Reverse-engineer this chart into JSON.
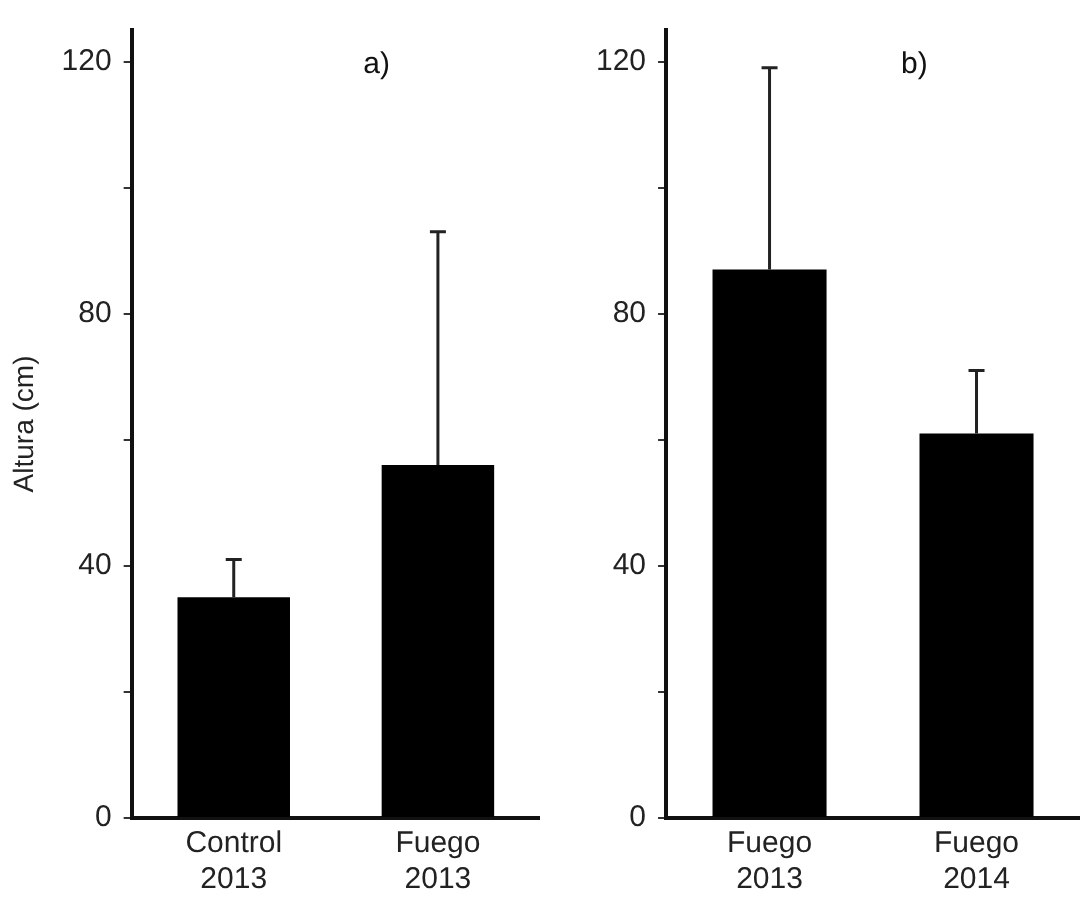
{
  "chart_data": [
    {
      "type": "bar",
      "ylabel": "Altura (cm)",
      "annotations": [
        "a)"
      ],
      "categories": [
        "Control 2013",
        "Fuego 2013"
      ],
      "values": [
        35,
        56
      ],
      "errors": [
        [
          35,
          41
        ],
        [
          56,
          93
        ]
      ],
      "color": "#000000",
      "ylim": [
        0,
        125
      ],
      "yticks": [
        0,
        {
          "value": 20,
          "label": null
        },
        40,
        {
          "value": 60,
          "label": null
        },
        80,
        {
          "value": 100,
          "label": null
        },
        120
      ],
      "grid": false,
      "legend": false
    },
    {
      "type": "bar",
      "annotations": [
        "b)"
      ],
      "categories": [
        "Fuego 2013",
        "Fuego 2014"
      ],
      "values": [
        87,
        61
      ],
      "errors": [
        [
          87,
          119
        ],
        [
          61,
          71
        ]
      ],
      "color": "#000000",
      "ylim": [
        0,
        125
      ],
      "yticks": [
        0,
        {
          "value": 20,
          "label": null
        },
        40,
        {
          "value": 60,
          "label": null
        },
        80,
        {
          "value": 100,
          "label": null
        },
        120
      ],
      "grid": false,
      "legend": false
    }
  ]
}
